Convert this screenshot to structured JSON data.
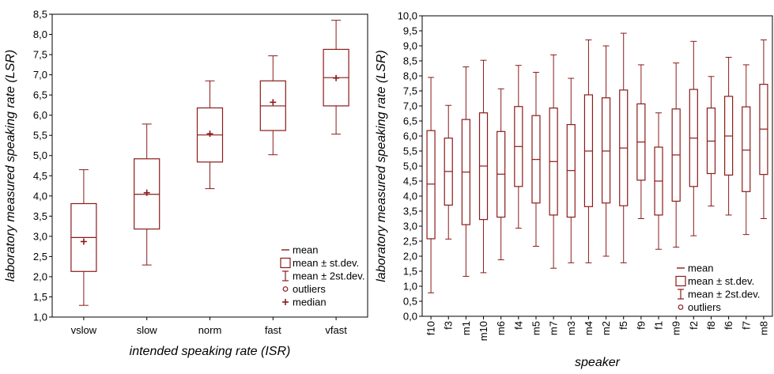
{
  "chart_data": [
    {
      "type": "boxplot",
      "xlabel": "intended speaking rate (ISR)",
      "ylabel": "laboratory measured speaking rate (LSR)",
      "ylim": [
        1.0,
        8.5
      ],
      "yticks": [
        "1,0",
        "1,5",
        "2,0",
        "2,5",
        "3,0",
        "3,5",
        "4,0",
        "4,5",
        "5,0",
        "5,5",
        "6,0",
        "6,5",
        "7,0",
        "7,5",
        "8,0",
        "8,5"
      ],
      "categories": [
        "vslow",
        "slow",
        "norm",
        "fast",
        "vfast"
      ],
      "series": [
        {
          "mean": 2.97,
          "sd_low": 2.13,
          "sd_high": 3.81,
          "sd2_low": 1.29,
          "sd2_high": 4.65,
          "median": 2.87
        },
        {
          "mean": 4.04,
          "sd_low": 3.18,
          "sd_high": 4.92,
          "sd2_low": 2.29,
          "sd2_high": 5.78,
          "median": 4.08
        },
        {
          "mean": 5.51,
          "sd_low": 4.84,
          "sd_high": 6.18,
          "sd2_low": 4.18,
          "sd2_high": 6.85,
          "median": 5.54
        },
        {
          "mean": 6.23,
          "sd_low": 5.62,
          "sd_high": 6.85,
          "sd2_low": 5.02,
          "sd2_high": 7.47,
          "median": 6.32
        },
        {
          "mean": 6.93,
          "sd_low": 6.23,
          "sd_high": 7.63,
          "sd2_low": 5.53,
          "sd2_high": 8.35,
          "median": 6.92
        }
      ],
      "legend": [
        "mean",
        "mean ± st.dev.",
        "mean ± 2st.dev.",
        "outliers",
        "median"
      ],
      "legend_position": "bottom-right",
      "color": "#8b1a1a",
      "grid": false
    },
    {
      "type": "boxplot",
      "xlabel": "speaker",
      "ylabel": "laboratory measured speaking rate (LSR)",
      "ylim": [
        0.0,
        10.0
      ],
      "yticks": [
        "0,0",
        "0,5",
        "1,0",
        "1,5",
        "2,0",
        "2,5",
        "3,0",
        "3,5",
        "4,0",
        "4,5",
        "5,0",
        "5,5",
        "6,0",
        "6,5",
        "7,0",
        "7,5",
        "8,0",
        "8,5",
        "9,0",
        "9,5",
        "10,0"
      ],
      "categories": [
        "f10",
        "f3",
        "m1",
        "m10",
        "m6",
        "f4",
        "m5",
        "m7",
        "m3",
        "m4",
        "m2",
        "f5",
        "f9",
        "f1",
        "m9",
        "f2",
        "f8",
        "f6",
        "f7",
        "m8"
      ],
      "series": [
        {
          "mean": 4.4,
          "sd_low": 2.58,
          "sd_high": 6.18,
          "sd2_low": 0.78,
          "sd2_high": 7.95
        },
        {
          "mean": 4.82,
          "sd_low": 3.7,
          "sd_high": 5.93,
          "sd2_low": 2.57,
          "sd2_high": 7.02
        },
        {
          "mean": 4.8,
          "sd_low": 3.05,
          "sd_high": 6.55,
          "sd2_low": 1.33,
          "sd2_high": 8.3
        },
        {
          "mean": 5.0,
          "sd_low": 3.22,
          "sd_high": 6.77,
          "sd2_low": 1.45,
          "sd2_high": 8.52
        },
        {
          "mean": 4.73,
          "sd_low": 3.3,
          "sd_high": 6.15,
          "sd2_low": 1.88,
          "sd2_high": 7.57
        },
        {
          "mean": 5.65,
          "sd_low": 4.32,
          "sd_high": 6.98,
          "sd2_low": 2.93,
          "sd2_high": 8.35
        },
        {
          "mean": 5.22,
          "sd_low": 3.77,
          "sd_high": 6.68,
          "sd2_low": 2.33,
          "sd2_high": 8.12
        },
        {
          "mean": 5.15,
          "sd_low": 3.37,
          "sd_high": 6.93,
          "sd2_low": 1.6,
          "sd2_high": 8.7
        },
        {
          "mean": 4.85,
          "sd_low": 3.3,
          "sd_high": 6.38,
          "sd2_low": 1.78,
          "sd2_high": 7.92
        },
        {
          "mean": 5.5,
          "sd_low": 3.65,
          "sd_high": 7.37,
          "sd2_low": 1.78,
          "sd2_high": 9.2
        },
        {
          "mean": 5.5,
          "sd_low": 3.77,
          "sd_high": 7.27,
          "sd2_low": 2.0,
          "sd2_high": 9.0
        },
        {
          "mean": 5.6,
          "sd_low": 3.68,
          "sd_high": 7.53,
          "sd2_low": 1.78,
          "sd2_high": 9.42
        },
        {
          "mean": 5.8,
          "sd_low": 4.53,
          "sd_high": 7.07,
          "sd2_low": 3.25,
          "sd2_high": 8.37
        },
        {
          "mean": 4.5,
          "sd_low": 3.37,
          "sd_high": 5.63,
          "sd2_low": 2.23,
          "sd2_high": 6.77
        },
        {
          "mean": 5.37,
          "sd_low": 3.83,
          "sd_high": 6.9,
          "sd2_low": 2.3,
          "sd2_high": 8.43
        },
        {
          "mean": 5.93,
          "sd_low": 4.32,
          "sd_high": 7.55,
          "sd2_low": 2.68,
          "sd2_high": 9.15
        },
        {
          "mean": 5.83,
          "sd_low": 4.75,
          "sd_high": 6.93,
          "sd2_low": 3.67,
          "sd2_high": 7.98
        },
        {
          "mean": 6.0,
          "sd_low": 4.7,
          "sd_high": 7.32,
          "sd2_low": 3.37,
          "sd2_high": 8.62
        },
        {
          "mean": 5.53,
          "sd_low": 4.15,
          "sd_high": 6.97,
          "sd2_low": 2.72,
          "sd2_high": 8.37
        },
        {
          "mean": 6.23,
          "sd_low": 4.72,
          "sd_high": 7.72,
          "sd2_low": 3.25,
          "sd2_high": 9.2
        }
      ],
      "legend": [
        "mean",
        "mean ± st.dev.",
        "mean ± 2st.dev.",
        "outliers"
      ],
      "legend_position": "bottom-right",
      "color": "#8b1a1a",
      "grid": false
    }
  ]
}
